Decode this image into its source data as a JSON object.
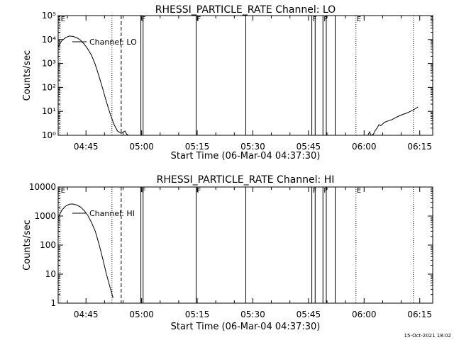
{
  "footer": {
    "timestamp": "15-Oct-2021 18:02"
  },
  "chart_data": [
    {
      "type": "line",
      "title": "RHESSI_PARTICLE_RATE Channel: LO",
      "xlabel": "Start Time (06-Mar-04 04:37:30)",
      "ylabel": "Counts/sec",
      "yscale": "log",
      "x_unit": "minutes since 04:37:30",
      "xlim": [
        0,
        101
      ],
      "ylim": [
        1,
        100000
      ],
      "xticks": [
        {
          "t": 7.5,
          "label": "04:45"
        },
        {
          "t": 22.5,
          "label": "05:00"
        },
        {
          "t": 37.5,
          "label": "05:15"
        },
        {
          "t": 52.5,
          "label": "05:30"
        },
        {
          "t": 67.5,
          "label": "05:45"
        },
        {
          "t": 82.5,
          "label": "06:00"
        },
        {
          "t": 97.5,
          "label": "06:15"
        }
      ],
      "yticks": [
        {
          "v": 1,
          "label": "10⁰"
        },
        {
          "v": 10,
          "label": "10¹"
        },
        {
          "v": 100,
          "label": "10²"
        },
        {
          "v": 1000,
          "label": "10³"
        },
        {
          "v": 10000,
          "label": "10⁴"
        },
        {
          "v": 100000,
          "label": "10⁵"
        }
      ],
      "legend": {
        "label": "Channel: LO",
        "placement": "top-left"
      },
      "series": [
        {
          "x": [
            0,
            1,
            2,
            3,
            4,
            5,
            6,
            7,
            8,
            9,
            10,
            11,
            12,
            13,
            14,
            15,
            16,
            17,
            18,
            18.5,
            19
          ],
          "y": [
            5000,
            9000,
            12000,
            14000,
            13500,
            12000,
            9500,
            6500,
            4000,
            2200,
            900,
            300,
            90,
            25,
            8,
            3,
            1.5,
            1.2,
            1.5,
            1.1,
            1
          ]
        },
        {
          "x": [
            83.5,
            84,
            84.3,
            85,
            85.5,
            86,
            86.5,
            87,
            88,
            89,
            90,
            91,
            92,
            93,
            94,
            95,
            96,
            97
          ],
          "y": [
            1,
            1.4,
            1,
            1.1,
            1.6,
            2,
            2.8,
            2.5,
            3.5,
            4,
            4.5,
            5.5,
            6.5,
            7.5,
            8.5,
            10,
            12,
            15
          ]
        }
      ],
      "markers": [
        {
          "t": 0.5,
          "label": "E",
          "style": "dotted"
        },
        {
          "t": 14.5,
          "label": "",
          "style": "dotted"
        },
        {
          "t": 17,
          "label": "",
          "style": "dashed"
        },
        {
          "t": 22.3,
          "label": "F",
          "style": "solid"
        },
        {
          "t": 22.9,
          "label": "",
          "style": "solid"
        },
        {
          "t": 37.2,
          "label": "F",
          "style": "solid"
        },
        {
          "t": 50.6,
          "label": "",
          "style": "solid"
        },
        {
          "t": 68.4,
          "label": "F",
          "style": "solid"
        },
        {
          "t": 69.3,
          "label": "",
          "style": "solid"
        },
        {
          "t": 71.4,
          "label": "F",
          "style": "solid"
        },
        {
          "t": 72.3,
          "label": "",
          "style": "solid"
        },
        {
          "t": 74.7,
          "label": "",
          "style": "solid"
        },
        {
          "t": 80.3,
          "label": "E",
          "style": "dotted"
        },
        {
          "t": 95.8,
          "label": "",
          "style": "dotted"
        }
      ]
    },
    {
      "type": "line",
      "title": "RHESSI_PARTICLE_RATE Channel: HI",
      "xlabel": "Start Time (06-Mar-04 04:37:30)",
      "ylabel": "Counts/sec",
      "yscale": "log",
      "x_unit": "minutes since 04:37:30",
      "xlim": [
        0,
        101
      ],
      "ylim": [
        1,
        10000
      ],
      "xticks": [
        {
          "t": 7.5,
          "label": "04:45"
        },
        {
          "t": 22.5,
          "label": "05:00"
        },
        {
          "t": 37.5,
          "label": "05:15"
        },
        {
          "t": 52.5,
          "label": "05:30"
        },
        {
          "t": 67.5,
          "label": "05:45"
        },
        {
          "t": 82.5,
          "label": "06:00"
        },
        {
          "t": 97.5,
          "label": "06:15"
        }
      ],
      "yticks": [
        {
          "v": 1,
          "label": "1"
        },
        {
          "v": 10,
          "label": "10"
        },
        {
          "v": 100,
          "label": "100"
        },
        {
          "v": 1000,
          "label": "1000"
        },
        {
          "v": 10000,
          "label": "10000"
        }
      ],
      "legend": {
        "label": "Channel: HI",
        "placement": "top-left"
      },
      "series": [
        {
          "x": [
            0,
            1,
            2,
            3,
            4,
            5,
            6,
            7,
            8,
            9,
            10,
            11,
            12,
            13,
            14,
            14.8
          ],
          "y": [
            900,
            1600,
            2200,
            2550,
            2600,
            2400,
            2050,
            1550,
            1050,
            600,
            300,
            110,
            35,
            10,
            3.5,
            1.5
          ]
        }
      ],
      "markers": [
        {
          "t": 0.5,
          "label": "E",
          "style": "dotted"
        },
        {
          "t": 14.5,
          "label": "",
          "style": "dotted"
        },
        {
          "t": 17,
          "label": "",
          "style": "dashed"
        },
        {
          "t": 22.3,
          "label": "F",
          "style": "solid"
        },
        {
          "t": 22.9,
          "label": "",
          "style": "solid"
        },
        {
          "t": 37.2,
          "label": "F",
          "style": "solid"
        },
        {
          "t": 50.6,
          "label": "",
          "style": "solid"
        },
        {
          "t": 68.4,
          "label": "F",
          "style": "solid"
        },
        {
          "t": 69.3,
          "label": "",
          "style": "solid"
        },
        {
          "t": 71.4,
          "label": "F",
          "style": "solid"
        },
        {
          "t": 72.3,
          "label": "",
          "style": "solid"
        },
        {
          "t": 74.7,
          "label": "",
          "style": "solid"
        },
        {
          "t": 80.3,
          "label": "E",
          "style": "dotted"
        },
        {
          "t": 95.8,
          "label": "",
          "style": "dotted"
        }
      ]
    }
  ]
}
